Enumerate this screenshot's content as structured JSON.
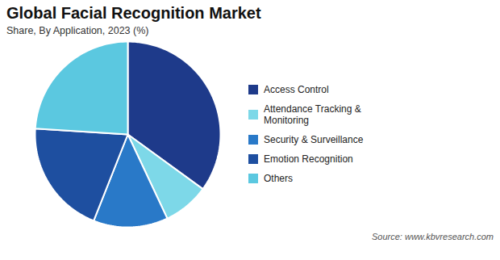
{
  "chart_data": {
    "type": "pie",
    "title": "Global Facial Recognition Market",
    "subtitle": "Share, By Application, 2023 (%)",
    "source": "Source: www.kbvresearch.com",
    "categories": [
      "Access Control",
      "Attendance Tracking &\n Monitoring",
      "Security & Surveillance",
      "Emotion Recognition",
      "Others"
    ],
    "values": [
      35,
      8,
      13,
      20,
      24
    ],
    "colors": [
      "#1e3a8a",
      "#7dd8e8",
      "#2979c8",
      "#1e4fa0",
      "#5bc8e0"
    ],
    "legend": "right"
  }
}
